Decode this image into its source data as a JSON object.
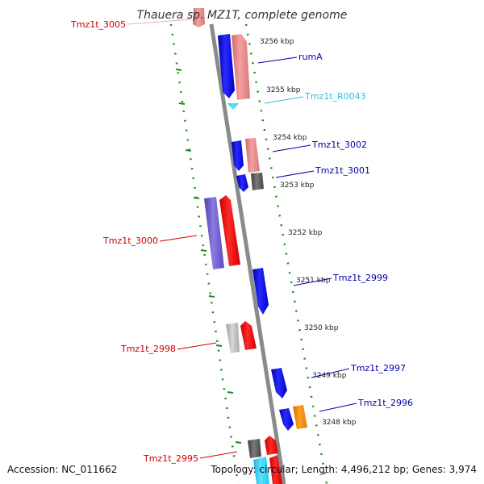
{
  "title": "Thauera sp. MZ1T, complete genome",
  "footer": {
    "accession": "Accession: NC_011662",
    "topology": "Topology: circular; Length: 4,496,212 bp; Genes: 3,974"
  },
  "colors": {
    "dot_track": "#1e8a1e",
    "backbone": "#8a8a8a",
    "left_label": "#cc0000",
    "right_label": "#0000aa",
    "rna_label": "#33bbdd"
  },
  "ticks": [
    "3256 kbp",
    "3255 kbp",
    "3254 kbp",
    "3253 kbp",
    "3252 kbp",
    "3251 kbp",
    "3250 kbp",
    "3249 kbp",
    "3248 kbp"
  ],
  "gene_labels": [
    {
      "text": "Tmz1t_3005",
      "side": "left",
      "kind": "gene"
    },
    {
      "text": "rumA",
      "side": "right",
      "kind": "gene"
    },
    {
      "text": "Tmz1t_R0043",
      "side": "right",
      "kind": "rna"
    },
    {
      "text": "Tmz1t_3002",
      "side": "right",
      "kind": "gene"
    },
    {
      "text": "Tmz1t_3001",
      "side": "right",
      "kind": "gene"
    },
    {
      "text": "Tmz1t_3000",
      "side": "left",
      "kind": "gene"
    },
    {
      "text": "Tmz1t_2999",
      "side": "right",
      "kind": "gene"
    },
    {
      "text": "Tmz1t_2998",
      "side": "left",
      "kind": "gene"
    },
    {
      "text": "Tmz1t_2997",
      "side": "right",
      "kind": "gene"
    },
    {
      "text": "Tmz1t_2996",
      "side": "right",
      "kind": "gene"
    },
    {
      "text": "Tmz1t_2995",
      "side": "left",
      "kind": "gene"
    }
  ]
}
